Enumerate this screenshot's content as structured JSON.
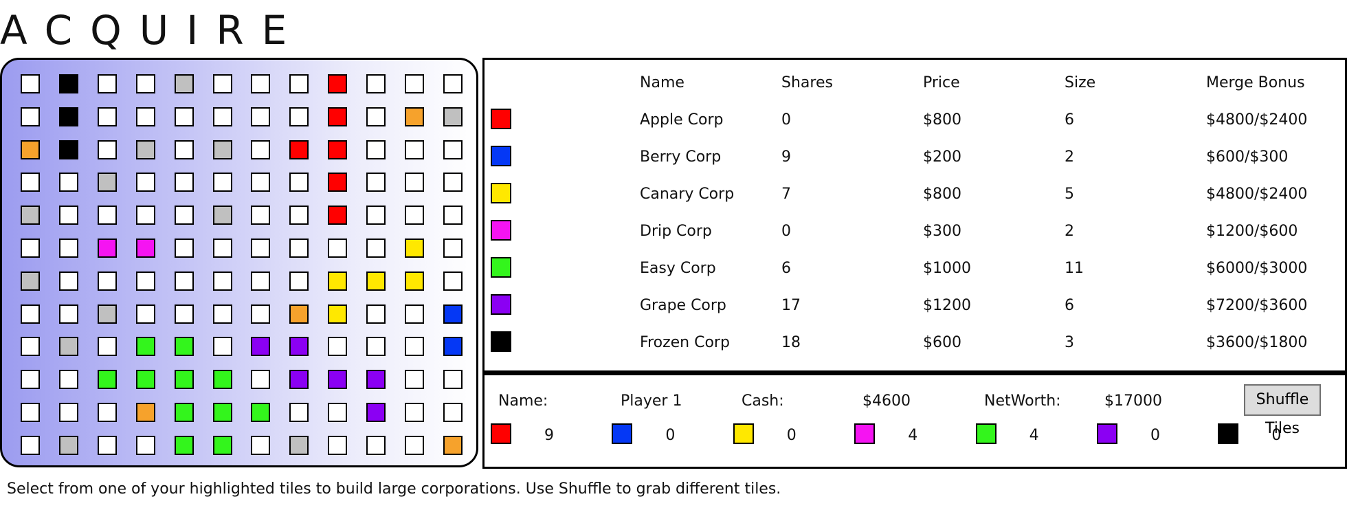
{
  "title": "ACQUIRE",
  "board": {
    "rows": [
      [
        "e",
        "k",
        "e",
        "e",
        "g",
        "e",
        "e",
        "e",
        "r",
        "e",
        "e",
        "e"
      ],
      [
        "e",
        "k",
        "e",
        "e",
        "e",
        "e",
        "e",
        "e",
        "r",
        "e",
        "o",
        "g"
      ],
      [
        "o",
        "k",
        "e",
        "g",
        "e",
        "g",
        "e",
        "r",
        "r",
        "e",
        "e",
        "e"
      ],
      [
        "e",
        "e",
        "g",
        "e",
        "e",
        "e",
        "e",
        "e",
        "r",
        "e",
        "e",
        "e"
      ],
      [
        "g",
        "e",
        "e",
        "e",
        "e",
        "g",
        "e",
        "e",
        "r",
        "e",
        "e",
        "e"
      ],
      [
        "e",
        "e",
        "m",
        "m",
        "e",
        "e",
        "e",
        "e",
        "e",
        "e",
        "y",
        "e"
      ],
      [
        "g",
        "e",
        "e",
        "e",
        "e",
        "e",
        "e",
        "e",
        "y",
        "y",
        "y",
        "e"
      ],
      [
        "e",
        "e",
        "g",
        "e",
        "e",
        "e",
        "e",
        "o",
        "y",
        "e",
        "e",
        "b"
      ],
      [
        "e",
        "g",
        "e",
        "n",
        "n",
        "e",
        "p",
        "p",
        "e",
        "e",
        "e",
        "b"
      ],
      [
        "e",
        "e",
        "n",
        "n",
        "n",
        "n",
        "e",
        "p",
        "p",
        "p",
        "e",
        "e"
      ],
      [
        "e",
        "e",
        "e",
        "o",
        "n",
        "n",
        "n",
        "e",
        "e",
        "p",
        "e",
        "e"
      ],
      [
        "e",
        "g",
        "e",
        "e",
        "n",
        "n",
        "e",
        "g",
        "e",
        "e",
        "e",
        "o"
      ]
    ]
  },
  "colors": {
    "e": "#ffffff",
    "k": "#000000",
    "g": "#c0c0c0",
    "r": "#ff0000",
    "o": "#f6a22c",
    "y": "#ffe800",
    "m": "#f514f2",
    "n": "#33f51c",
    "p": "#8b00f3",
    "b": "#0538f5"
  },
  "corporations": {
    "headers": {
      "name": "Name",
      "shares": "Shares",
      "price": "Price",
      "size": "Size",
      "bonus": "Merge Bonus"
    },
    "rows": [
      {
        "color": "#ff0000",
        "name": "Apple Corp",
        "shares": "0",
        "price": "$800",
        "size": "6",
        "bonus": "$4800/$2400"
      },
      {
        "color": "#0538f5",
        "name": "Berry Corp",
        "shares": "9",
        "price": "$200",
        "size": "2",
        "bonus": "$600/$300"
      },
      {
        "color": "#ffe800",
        "name": "Canary Corp",
        "shares": "7",
        "price": "$800",
        "size": "5",
        "bonus": "$4800/$2400"
      },
      {
        "color": "#f514f2",
        "name": "Drip Corp",
        "shares": "0",
        "price": "$300",
        "size": "2",
        "bonus": "$1200/$600"
      },
      {
        "color": "#33f51c",
        "name": "Easy Corp",
        "shares": "6",
        "price": "$1000",
        "size": "11",
        "bonus": "$6000/$3000"
      },
      {
        "color": "#8b00f3",
        "name": "Grape Corp",
        "shares": "17",
        "price": "$1200",
        "size": "6",
        "bonus": "$7200/$3600"
      },
      {
        "color": "#000000",
        "name": "Frozen Corp",
        "shares": "18",
        "price": "$600",
        "size": "3",
        "bonus": "$3600/$1800"
      }
    ]
  },
  "player": {
    "name_label": "Name:",
    "name": "Player 1",
    "cash_label": "Cash:",
    "cash": "$4600",
    "networth_label": "NetWorth:",
    "networth": "$17000",
    "shuffle_label": "Shuffle Tiles",
    "holdings": [
      {
        "color": "#ff0000",
        "count": "9"
      },
      {
        "color": "#0538f5",
        "count": "0"
      },
      {
        "color": "#ffe800",
        "count": "0"
      },
      {
        "color": "#f514f2",
        "count": "4"
      },
      {
        "color": "#33f51c",
        "count": "4"
      },
      {
        "color": "#8b00f3",
        "count": "0"
      },
      {
        "color": "#000000",
        "count": "0"
      }
    ]
  },
  "footer": "Select from one of your highlighted tiles to build large corporations.  Use Shuffle to grab different tiles."
}
